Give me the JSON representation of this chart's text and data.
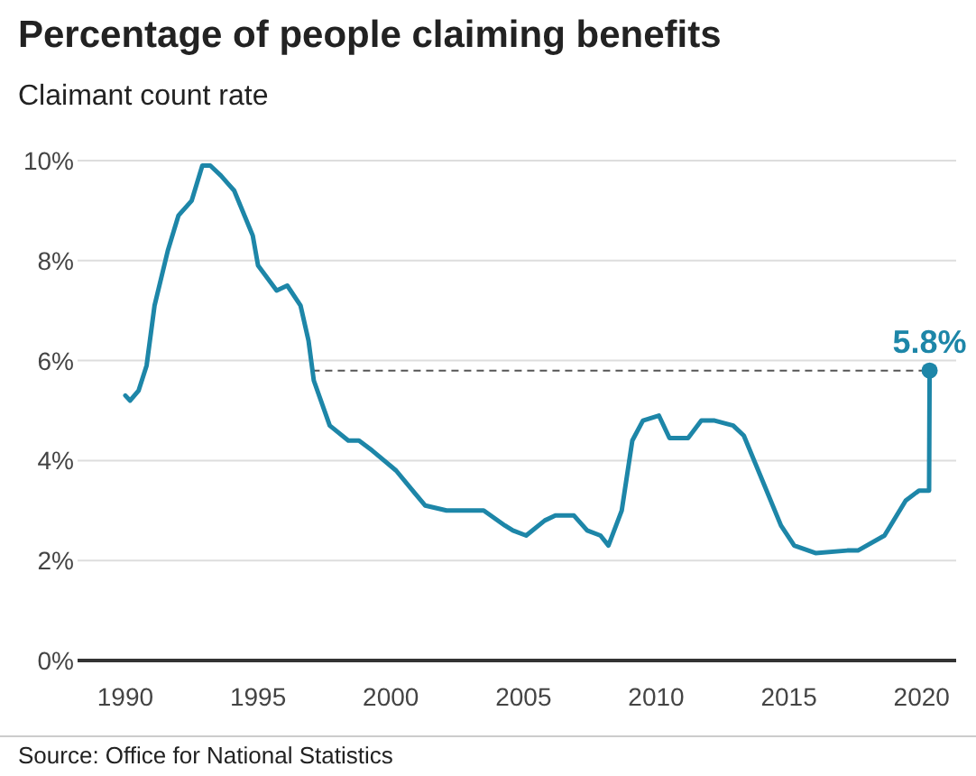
{
  "chart_data": {
    "type": "line",
    "title": "Percentage of people claiming benefits",
    "subtitle": "Claimant count rate",
    "annotations": [
      {
        "text": "5.8%",
        "x": 2020.3,
        "y": 5.8
      },
      "Source: Office for National Statistics"
    ],
    "xlim": [
      1988.2,
      2021.3
    ],
    "xticks": [
      1990,
      1995,
      2000,
      2005,
      2010,
      2015,
      2020
    ],
    "ylim": [
      0,
      10
    ],
    "yticks": [
      {
        "value": 0,
        "label": "0%"
      },
      {
        "value": 2,
        "label": "2%"
      },
      {
        "value": 4,
        "label": "4%"
      },
      {
        "value": 6,
        "label": "6%"
      },
      {
        "value": 8,
        "label": "8%"
      },
      {
        "value": 10,
        "label": "10%"
      }
    ],
    "grid": "y",
    "marker": "none",
    "line_style": "solid",
    "ref_lines": [
      {
        "axis": "y",
        "value": 5.8,
        "color": "#555555",
        "line_style": "dashed"
      }
    ],
    "series": [
      {
        "color": "#1d86a8",
        "x": [
          1990.0,
          1990.18,
          1990.5,
          1990.8,
          1991.1,
          1991.6,
          1992.0,
          1992.5,
          1992.9,
          1993.2,
          1993.6,
          1994.1,
          1994.8,
          1995.0,
          1995.7,
          1996.1,
          1996.6,
          1996.9,
          1997.1,
          1997.7,
          1998.4,
          1998.8,
          1999.3,
          2000.2,
          2000.9,
          2001.3,
          2002.1,
          2002.9,
          2003.5,
          2004.3,
          2004.6,
          2005.1,
          2005.8,
          2006.2,
          2006.9,
          2007.4,
          2007.9,
          2008.2,
          2008.7,
          2009.1,
          2009.5,
          2010.1,
          2010.5,
          2011.2,
          2011.7,
          2012.2,
          2012.9,
          2013.3,
          2014.0,
          2014.7,
          2015.2,
          2016.0,
          2017.2,
          2017.6,
          2018.6,
          2019.4,
          2019.9,
          2020.28,
          2020.3
        ],
        "values": [
          5.3,
          5.2,
          5.4,
          5.9,
          7.1,
          8.2,
          8.9,
          9.2,
          9.9,
          9.9,
          9.7,
          9.4,
          8.5,
          7.9,
          7.4,
          7.5,
          7.1,
          6.4,
          5.6,
          4.7,
          4.4,
          4.4,
          4.2,
          3.8,
          3.35,
          3.1,
          3.0,
          3.0,
          3.0,
          2.7,
          2.6,
          2.5,
          2.8,
          2.9,
          2.9,
          2.6,
          2.5,
          2.3,
          3.0,
          4.4,
          4.8,
          4.9,
          4.45,
          4.45,
          4.8,
          4.8,
          4.7,
          4.5,
          3.6,
          2.7,
          2.3,
          2.15,
          2.2,
          2.2,
          2.5,
          3.2,
          3.4,
          3.4,
          5.8
        ]
      },
      {
        "type": "scatter",
        "marker": "circle",
        "color": "#1d86a8",
        "x": [
          2020.3
        ],
        "values": [
          5.8
        ]
      }
    ]
  }
}
